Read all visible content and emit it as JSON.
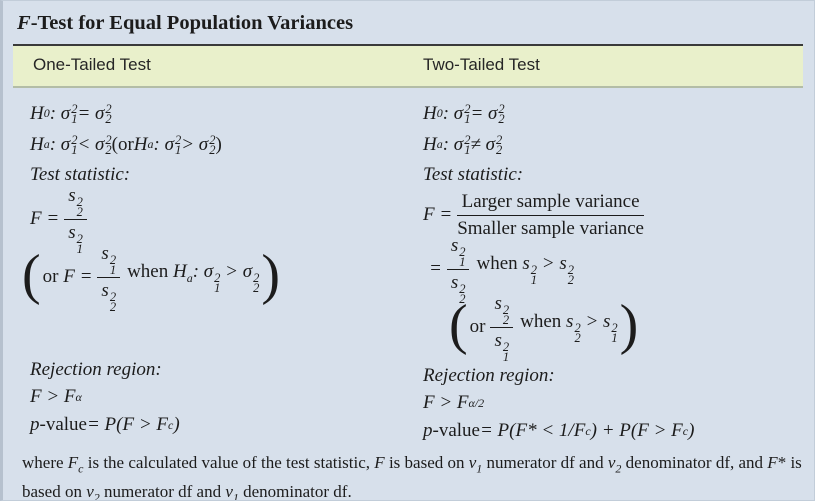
{
  "title": "‹F›-Test for Equal Population Variances",
  "colors": {
    "background": "#d7e0eb",
    "header_band": "#e9f0cb",
    "rule": "#3a3a3a",
    "text": "#1c1c1c"
  },
  "table": {
    "headers": [
      "One-Tailed Test",
      "Two-Tailed Test"
    ],
    "columns": [
      {
        "name": "one-tailed",
        "lines": [
          {
            "kind": "math",
            "cls": "h-row",
            "text": "H_{0}: σ_{1}^{2} = σ_{2}^{2}"
          },
          {
            "kind": "math",
            "cls": "h-row",
            "text": "H_{a}: σ_{1}^{2} < σ_{2}^{2} «(or »H_{a}: σ_{1}^{2} > σ_{2}^{2}«)»"
          },
          {
            "kind": "label",
            "cls": "label-row",
            "text": "Test statistic:"
          },
          {
            "kind": "frac",
            "cls": "frac-row",
            "pre": "F = ",
            "num": "s_{2}^{2}",
            "den": "s_{1}^{2}",
            "post": "",
            "paren": false
          },
          {
            "kind": "frac",
            "cls": "paren-row left-hang",
            "pre": "«or »F = ",
            "num": "s_{1}^{2}",
            "den": "s_{2}^{2}",
            "post": " «when »H_{a}: σ_{1}^{2} > σ_{2}^{2}",
            "paren": true
          },
          {
            "kind": "spacer",
            "cls": "spacer-left"
          },
          {
            "kind": "label",
            "cls": "label-row2",
            "text": "Rejection region:"
          },
          {
            "kind": "math",
            "cls": "m-row",
            "text": "F > F_{α}"
          },
          {
            "kind": "math",
            "cls": "m-row",
            "text": "p«-value» = P(F > F_{c})"
          }
        ]
      },
      {
        "name": "two-tailed",
        "lines": [
          {
            "kind": "math",
            "cls": "h-row",
            "text": "H_{0}: σ_{1}^{2} = σ_{2}^{2}"
          },
          {
            "kind": "math",
            "cls": "h-row",
            "text": "H_{a}: σ_{1}^{2} ≠ σ_{2}^{2}"
          },
          {
            "kind": "label",
            "cls": "label-row",
            "text": "Test statistic:"
          },
          {
            "kind": "frac",
            "cls": "tfrac-row",
            "pre": "F = ",
            "num": "«Larger sample variance»",
            "den": "«Smaller sample variance»",
            "post": "",
            "paren": false
          },
          {
            "kind": "frac",
            "cls": "frac-row indent1",
            "pre": "= ",
            "num": "s_{1}^{2}",
            "den": "s_{2}^{2}",
            "post": " «when »s_{1}^{2} > s_{2}^{2}",
            "paren": false
          },
          {
            "kind": "frac",
            "cls": "paren-row indent2",
            "pre": "«or »",
            "num": "s_{2}^{2}",
            "den": "s_{1}^{2}",
            "post": " «when »s_{2}^{2} > s_{1}^{2}",
            "paren": true
          },
          {
            "kind": "spacer",
            "cls": "spacer-right"
          },
          {
            "kind": "label",
            "cls": "label-row2",
            "text": "Rejection region:"
          },
          {
            "kind": "math",
            "cls": "m-row",
            "text": "F > F_{α/2}"
          },
          {
            "kind": "math",
            "cls": "m-row",
            "text": "p«-value» = P(F* < 1/F_{c}) + P(F > F_{c})"
          }
        ]
      }
    ]
  },
  "footnote": "where ‹F_{c}› is the calculated value of the test statistic, ‹F› is based on ‹ν_{1}› numerator df and ‹ν_{2}› denominator df, and ‹F›* is based on ‹ν_{2}› numerator df and ‹ν_{1}› denominator df."
}
